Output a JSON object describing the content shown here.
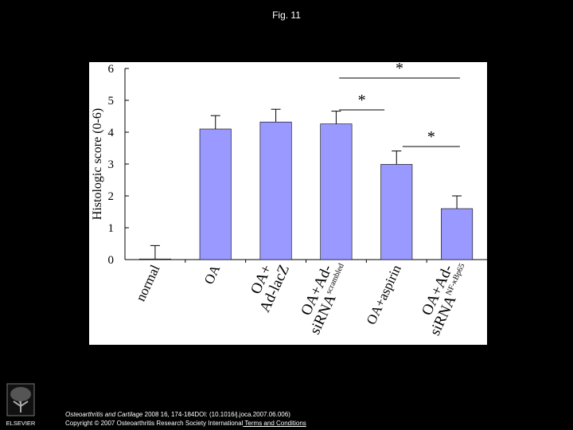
{
  "figure": {
    "title": "Fig. 11"
  },
  "chart_data": {
    "type": "bar",
    "ylabel": "Histologic score (0-6)",
    "ylim": [
      0,
      6
    ],
    "yticks": [
      "0",
      "1",
      "2",
      "3",
      "4",
      "5",
      "6"
    ],
    "categories": [
      {
        "main": "normal",
        "sub": ""
      },
      {
        "main": "OA",
        "sub": ""
      },
      {
        "main": "OA+\nAd-lacZ",
        "sub": ""
      },
      {
        "main": "OA+Ad-\nsiRNA",
        "sub": "scrambled"
      },
      {
        "main": "OA+aspirin",
        "sub": ""
      },
      {
        "main": "OA+Ad-\nsiRNA",
        "sub": "NF-κBp65"
      }
    ],
    "values": [
      0.02,
      4.1,
      4.32,
      4.26,
      2.99,
      1.6
    ],
    "errors": [
      0.42,
      0.42,
      0.4,
      0.4,
      0.42,
      0.4
    ],
    "bar_color": "#9999FF",
    "significance": [
      {
        "from": 3,
        "to": 5,
        "label": "*"
      },
      {
        "from": 3,
        "to": 4,
        "label": "*"
      },
      {
        "from": 4,
        "to": 5,
        "label": "*"
      }
    ]
  },
  "footer": {
    "journal": "Osteoarthritis and Cartilage",
    "citation": " 2008 16, 174-184DOI: (10.1016/j.joca.2007.06.006)",
    "copyright": "Copyright © 2007 Osteoarthritis Research Society International",
    "link": " Terms and Conditions"
  },
  "logo": {
    "text": "ELSEVIER"
  }
}
